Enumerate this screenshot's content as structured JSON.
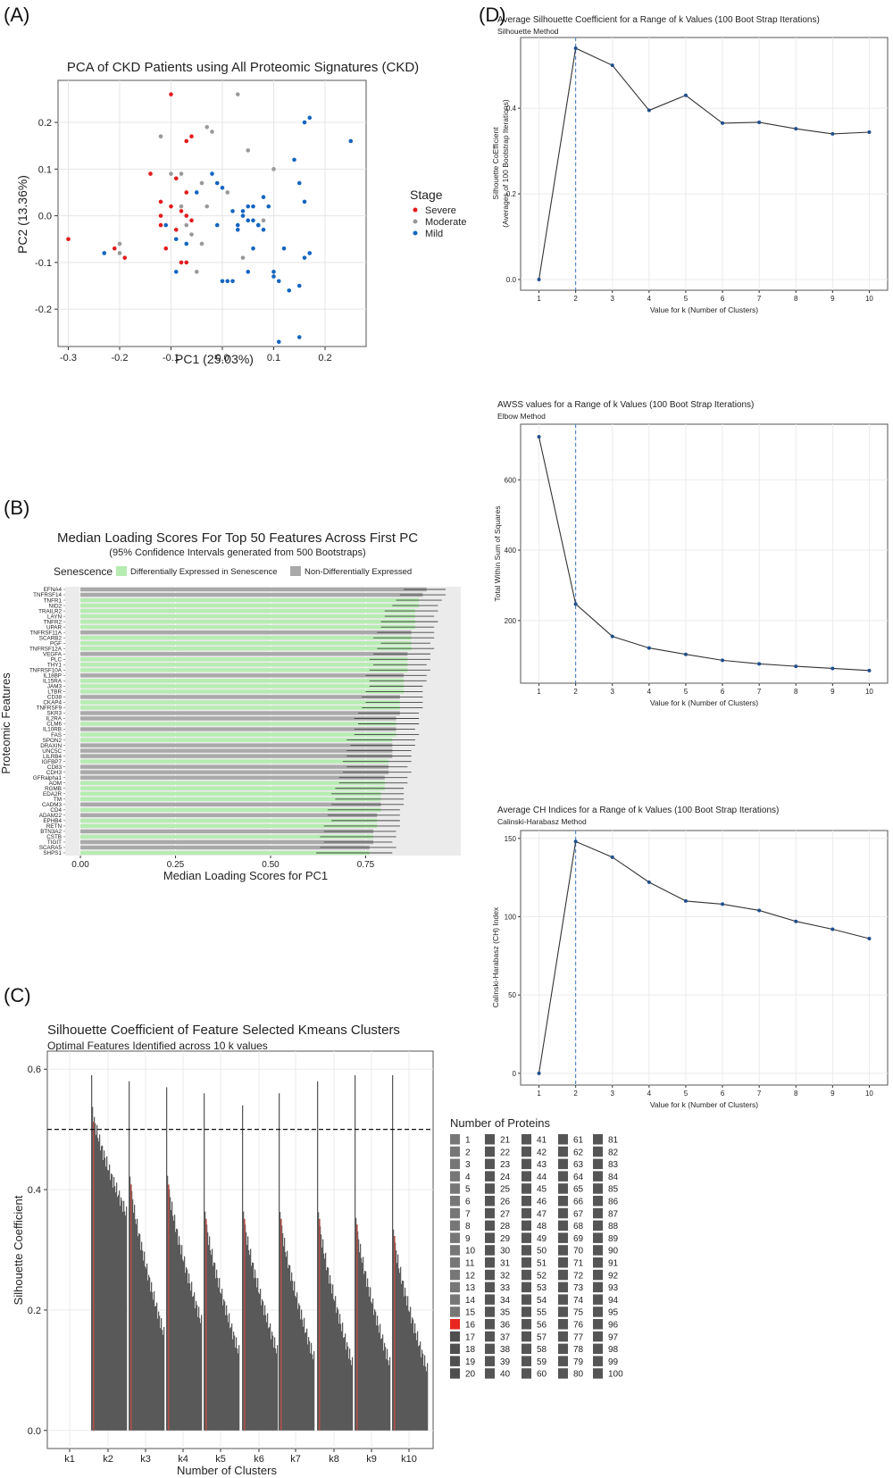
{
  "panel_labels": {
    "a": "(A)",
    "b": "(B)",
    "c": "(C)",
    "d": "(D)"
  },
  "colors": {
    "severe": "#e41a1c",
    "moderate": "#999999",
    "mild": "#1565c0",
    "de": "#b6ecb1",
    "nde": "#a9a9a9",
    "panel": "#ebebeb",
    "grid": "#ffffff",
    "ci": "#444444",
    "bar_dark": "#595959",
    "highlight": "#e8251f",
    "vline": "#3a78c2"
  },
  "chart_data": [
    {
      "id": "pca",
      "type": "scatter",
      "title": "PCA of CKD Patients using All Proteomic Signatures (CKD)",
      "xlabel": "PC1 (25.03%)",
      "ylabel": "PC2 (13.36%)",
      "xlim": [
        -0.32,
        0.28
      ],
      "ylim": [
        -0.28,
        0.29
      ],
      "xticks": [
        -0.3,
        -0.2,
        -0.1,
        0.0,
        0.1,
        0.2
      ],
      "yticks": [
        -0.2,
        -0.1,
        0.0,
        0.1,
        0.2
      ],
      "xtick_labels": [
        "-0.3",
        "-0.2",
        "-0.1",
        "0.0",
        "0.1",
        "0.2"
      ],
      "ytick_labels": [
        "-0.2",
        "-0.1",
        "0.0",
        "0.1",
        "0.2"
      ],
      "legend_title": "Stage",
      "series": [
        {
          "name": "Severe",
          "color_key": "severe",
          "points": [
            [
              -0.3,
              -0.05
            ],
            [
              -0.21,
              -0.07
            ],
            [
              -0.19,
              -0.09
            ],
            [
              -0.14,
              0.09
            ],
            [
              -0.12,
              0.03
            ],
            [
              -0.12,
              0.0
            ],
            [
              -0.12,
              -0.02
            ],
            [
              -0.11,
              -0.07
            ],
            [
              -0.1,
              0.26
            ],
            [
              -0.1,
              0.02
            ],
            [
              -0.09,
              0.08
            ],
            [
              -0.08,
              0.01
            ],
            [
              -0.08,
              -0.1
            ],
            [
              -0.07,
              0.05
            ],
            [
              -0.07,
              0.0
            ],
            [
              -0.07,
              0.16
            ],
            [
              -0.06,
              0.17
            ],
            [
              -0.06,
              -0.01
            ],
            [
              -0.07,
              -0.1
            ],
            [
              -0.09,
              -0.03
            ]
          ]
        },
        {
          "name": "Moderate",
          "color_key": "moderate",
          "points": [
            [
              -0.2,
              -0.08
            ],
            [
              -0.2,
              -0.06
            ],
            [
              -0.12,
              0.17
            ],
            [
              -0.1,
              0.09
            ],
            [
              -0.08,
              0.09
            ],
            [
              -0.07,
              -0.02
            ],
            [
              -0.06,
              -0.04
            ],
            [
              -0.05,
              -0.12
            ],
            [
              -0.04,
              -0.06
            ],
            [
              -0.03,
              0.19
            ],
            [
              -0.02,
              0.18
            ],
            [
              -0.04,
              0.07
            ],
            [
              0.01,
              0.05
            ],
            [
              0.03,
              0.26
            ],
            [
              0.05,
              0.14
            ],
            [
              0.08,
              -0.01
            ],
            [
              0.1,
              0.1
            ],
            [
              -0.03,
              0.02
            ],
            [
              0.04,
              -0.09
            ],
            [
              -0.08,
              0.02
            ]
          ]
        },
        {
          "name": "Mild",
          "color_key": "mild",
          "points": [
            [
              -0.23,
              -0.08
            ],
            [
              -0.11,
              -0.02
            ],
            [
              -0.09,
              -0.12
            ],
            [
              -0.09,
              -0.05
            ],
            [
              -0.07,
              -0.06
            ],
            [
              -0.05,
              0.05
            ],
            [
              -0.02,
              0.09
            ],
            [
              -0.01,
              0.07
            ],
            [
              0.0,
              0.06
            ],
            [
              -0.01,
              -0.02
            ],
            [
              0.0,
              -0.14
            ],
            [
              0.01,
              -0.14
            ],
            [
              0.02,
              -0.14
            ],
            [
              0.02,
              0.01
            ],
            [
              0.03,
              -0.02
            ],
            [
              0.03,
              -0.03
            ],
            [
              0.04,
              0.0
            ],
            [
              0.05,
              -0.01
            ],
            [
              0.05,
              0.02
            ],
            [
              0.06,
              -0.01
            ],
            [
              0.06,
              0.02
            ],
            [
              0.06,
              -0.07
            ],
            [
              0.07,
              -0.02
            ],
            [
              0.07,
              -0.02
            ],
            [
              0.08,
              -0.03
            ],
            [
              0.08,
              0.04
            ],
            [
              0.09,
              0.02
            ],
            [
              0.1,
              -0.12
            ],
            [
              0.1,
              -0.13
            ],
            [
              0.11,
              -0.14
            ],
            [
              0.11,
              -0.27
            ],
            [
              0.12,
              -0.07
            ],
            [
              0.13,
              -0.16
            ],
            [
              0.14,
              0.12
            ],
            [
              0.15,
              0.07
            ],
            [
              0.15,
              -0.26
            ],
            [
              0.15,
              -0.15
            ],
            [
              0.16,
              0.03
            ],
            [
              0.16,
              0.2
            ],
            [
              0.16,
              -0.09
            ],
            [
              0.17,
              -0.08
            ],
            [
              0.17,
              0.21
            ],
            [
              0.25,
              0.16
            ],
            [
              0.04,
              0.01
            ],
            [
              0.05,
              -0.12
            ]
          ]
        }
      ]
    },
    {
      "id": "loadings",
      "type": "bar",
      "title": "Median Loading Scores For Top 50 Features Across First PC",
      "subtitle": "(95% Confidence Intervals generated from 500 Bootstraps)",
      "xlabel": "Median Loading Scores for PC1",
      "ylabel": "Proteomic Features",
      "xlim": [
        -0.04,
        1.0
      ],
      "xticks": [
        0.0,
        0.25,
        0.5,
        0.75
      ],
      "xtick_labels": [
        "0.00",
        "0.25",
        "0.50",
        "0.75"
      ],
      "legend_title": "Senescence",
      "legend_items": [
        {
          "label": "Differentially Expressed in Senescence",
          "color_key": "de"
        },
        {
          "label": "Non-Differentially Expressed",
          "color_key": "nde"
        }
      ],
      "categories": [
        "EFNA4",
        "TNFRSF14",
        "TNFR1",
        "NID2",
        "TRAILR2",
        "LAYN",
        "TNFR2",
        "UPAR",
        "TNFRSF11A",
        "SCARB2",
        "PGF",
        "TNFRSF12A",
        "VEGFA",
        "PLC",
        "THY1",
        "TNFRSF10A",
        "IL18BP",
        "IL15RA",
        "JAM3",
        "LTBR",
        "CD38",
        "CKAP4",
        "TNFRSF9",
        "SKR3",
        "IL2RA",
        "CLM6",
        "IL10RB",
        "FAS",
        "SPON2",
        "DRAXIN",
        "UNC5C",
        "LILRB4",
        "IGFBP7",
        "CD83",
        "CDH3",
        "GFRalpha1",
        "AOM",
        "RGMB",
        "EDA2R",
        "TM",
        "CADM3",
        "CD4",
        "ADAM22",
        "EPHB4",
        "RETN",
        "BTN3A2",
        "CSTB",
        "TIGIT",
        "SCARA5",
        "SHPS1"
      ],
      "values": [
        0.91,
        0.9,
        0.89,
        0.89,
        0.88,
        0.88,
        0.88,
        0.88,
        0.87,
        0.87,
        0.87,
        0.87,
        0.86,
        0.86,
        0.86,
        0.86,
        0.85,
        0.85,
        0.85,
        0.85,
        0.84,
        0.84,
        0.84,
        0.84,
        0.83,
        0.83,
        0.83,
        0.83,
        0.82,
        0.82,
        0.82,
        0.82,
        0.81,
        0.81,
        0.81,
        0.8,
        0.8,
        0.8,
        0.79,
        0.79,
        0.79,
        0.79,
        0.78,
        0.78,
        0.78,
        0.77,
        0.77,
        0.77,
        0.76,
        0.76
      ],
      "ci_low": [
        0.85,
        0.84,
        0.83,
        0.82,
        0.8,
        0.8,
        0.79,
        0.79,
        0.78,
        0.77,
        0.79,
        0.78,
        0.77,
        0.76,
        0.77,
        0.76,
        0.75,
        0.76,
        0.76,
        0.75,
        0.74,
        0.75,
        0.74,
        0.73,
        0.72,
        0.73,
        0.72,
        0.72,
        0.7,
        0.71,
        0.7,
        0.7,
        0.69,
        0.7,
        0.69,
        0.68,
        0.68,
        0.67,
        0.66,
        0.67,
        0.66,
        0.65,
        0.65,
        0.66,
        0.64,
        0.64,
        0.63,
        0.64,
        0.63,
        0.62
      ],
      "ci_high": [
        0.96,
        0.96,
        0.95,
        0.94,
        0.94,
        0.93,
        0.94,
        0.93,
        0.93,
        0.93,
        0.92,
        0.93,
        0.92,
        0.92,
        0.91,
        0.92,
        0.91,
        0.91,
        0.9,
        0.9,
        0.9,
        0.9,
        0.9,
        0.89,
        0.89,
        0.89,
        0.88,
        0.89,
        0.88,
        0.88,
        0.87,
        0.87,
        0.87,
        0.86,
        0.87,
        0.86,
        0.86,
        0.85,
        0.85,
        0.85,
        0.85,
        0.84,
        0.84,
        0.84,
        0.84,
        0.83,
        0.83,
        0.82,
        0.83,
        0.82
      ],
      "de_flags": [
        0,
        0,
        1,
        1,
        1,
        1,
        1,
        1,
        0,
        1,
        1,
        1,
        0,
        1,
        1,
        1,
        0,
        1,
        1,
        1,
        0,
        1,
        1,
        0,
        0,
        1,
        0,
        1,
        1,
        0,
        0,
        0,
        1,
        0,
        0,
        0,
        1,
        1,
        1,
        1,
        0,
        1,
        0,
        1,
        1,
        0,
        1,
        0,
        0,
        1
      ]
    },
    {
      "id": "silhouette_features",
      "type": "bar",
      "title": "Silhouette Coefficient of Feature Selected Kmeans Clusters",
      "subtitle": "Optimal Features Identified across 10 k values",
      "xlabel": "Number of Clusters",
      "ylabel": "Silhouette Coefficient",
      "ylim": [
        -0.03,
        0.63
      ],
      "yticks": [
        0.0,
        0.2,
        0.4,
        0.6
      ],
      "ytick_labels": [
        "0.0",
        "0.2",
        "0.4",
        "0.6"
      ],
      "reference_line": 0.5,
      "categories": [
        "k1",
        "k2",
        "k3",
        "k4",
        "k5",
        "k6",
        "k7",
        "k8",
        "k9",
        "k10"
      ],
      "groups": [
        {
          "k": "k1",
          "peak": null,
          "start": null,
          "end": null
        },
        {
          "k": "k2",
          "peak": 0.59,
          "start": 0.54,
          "end": 0.36
        },
        {
          "k": "k3",
          "peak": 0.58,
          "start": 0.43,
          "end": 0.16
        },
        {
          "k": "k4",
          "peak": 0.57,
          "start": 0.43,
          "end": 0.18
        },
        {
          "k": "k5",
          "peak": 0.56,
          "start": 0.37,
          "end": 0.13
        },
        {
          "k": "k6",
          "peak": 0.54,
          "start": 0.37,
          "end": 0.13
        },
        {
          "k": "k7",
          "peak": 0.56,
          "start": 0.37,
          "end": 0.12
        },
        {
          "k": "k8",
          "peak": 0.58,
          "start": 0.37,
          "end": 0.11
        },
        {
          "k": "k9",
          "peak": 0.59,
          "start": 0.36,
          "end": 0.11
        },
        {
          "k": "k10",
          "peak": 0.59,
          "start": 0.34,
          "end": 0.1
        }
      ],
      "legend_title": "Number of Proteins",
      "legend_columns": [
        [
          "1",
          "2",
          "3",
          "4",
          "5",
          "6",
          "7",
          "8",
          "9",
          "10",
          "11",
          "12",
          "13",
          "14",
          "15",
          "16",
          "17",
          "18",
          "19",
          "20"
        ],
        [
          "21",
          "22",
          "23",
          "24",
          "25",
          "26",
          "27",
          "28",
          "29",
          "30",
          "31",
          "32",
          "33",
          "34",
          "35",
          "36",
          "37",
          "38",
          "39",
          "40"
        ],
        [
          "41",
          "42",
          "43",
          "44",
          "45",
          "46",
          "47",
          "48",
          "49",
          "50",
          "51",
          "52",
          "53",
          "54",
          "55",
          "56",
          "57",
          "58",
          "59",
          "60"
        ],
        [
          "61",
          "62",
          "63",
          "64",
          "65",
          "66",
          "67",
          "68",
          "69",
          "70",
          "71",
          "72",
          "73",
          "74",
          "75",
          "76",
          "77",
          "78",
          "79",
          "80"
        ],
        [
          "81",
          "82",
          "83",
          "84",
          "85",
          "86",
          "87",
          "88",
          "89",
          "90",
          "91",
          "92",
          "93",
          "94",
          "95",
          "96",
          "97",
          "98",
          "99",
          "100"
        ]
      ],
      "highlighted_count": "16"
    },
    {
      "id": "silhouette_k",
      "type": "line",
      "title": "Average Silhouette Coefficient for a Range of k Values (100 Boot Strap Iterations)",
      "subtitle": "Silhouette Method",
      "xlabel": "Value for k (Number of Clusters)",
      "ylabel": "Silhouette CoEfficient",
      "ylabel2": "(Averages of 100 Bootstrap Iterations)",
      "x": [
        1,
        2,
        3,
        4,
        5,
        6,
        7,
        8,
        9,
        10
      ],
      "y": [
        0.0,
        0.54,
        0.5,
        0.395,
        0.43,
        0.365,
        0.367,
        0.352,
        0.34,
        0.344
      ],
      "ylim": [
        -0.025,
        0.565
      ],
      "yticks": [
        0.0,
        0.2,
        0.4
      ],
      "ytick_labels": [
        "0.0",
        "0.2",
        "0.4"
      ],
      "optimal_k": 2
    },
    {
      "id": "awss",
      "type": "line",
      "title": "AWSS values for a Range of k Values (100 Boot Strap Iterations)",
      "subtitle": "Elbow Method",
      "xlabel": "Value for k (Number of Clusters)",
      "ylabel": "Total Within Sum of Squares",
      "x": [
        1,
        2,
        3,
        4,
        5,
        6,
        7,
        8,
        9,
        10
      ],
      "y": [
        722,
        247,
        155,
        122,
        104,
        87,
        77,
        70,
        64,
        58
      ],
      "ylim": [
        22,
        758
      ],
      "yticks": [
        200,
        400,
        600
      ],
      "ytick_labels": [
        "200",
        "400",
        "600"
      ],
      "optimal_k": 2
    },
    {
      "id": "ch",
      "type": "line",
      "title": "Average CH Indices for a Range of k Values (100 Boot Strap Iterations)",
      "subtitle": "Calinski-Harabasz Method",
      "xlabel": "Value for k (Number of Clusters)",
      "ylabel": "Calinski-Harabasz (CH) Index",
      "x": [
        1,
        2,
        3,
        4,
        5,
        6,
        7,
        8,
        9,
        10
      ],
      "y": [
        0,
        148,
        138,
        122,
        110,
        108,
        104,
        97,
        92,
        86
      ],
      "ylim": [
        -7.5,
        155
      ],
      "yticks": [
        0,
        50,
        100,
        150
      ],
      "ytick_labels": [
        "0",
        "50",
        "100",
        "150"
      ],
      "optimal_k": 2
    }
  ],
  "xtick_k_labels": [
    "1",
    "2",
    "3",
    "4",
    "5",
    "6",
    "7",
    "8",
    "9",
    "10"
  ]
}
